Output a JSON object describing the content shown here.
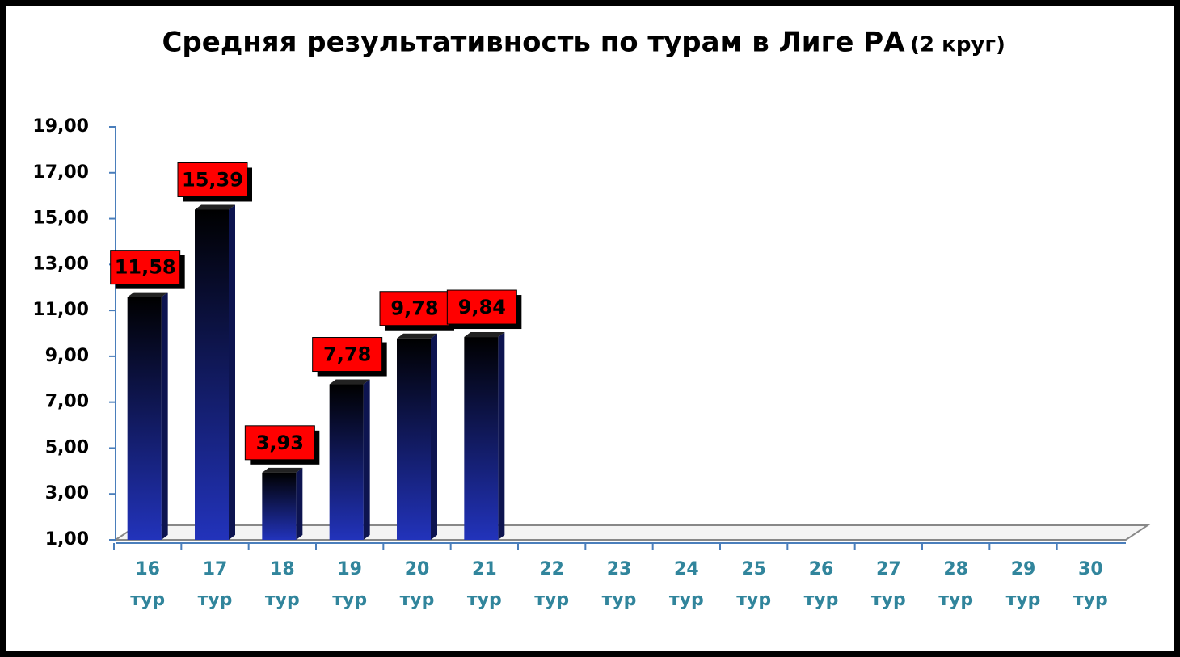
{
  "chart_data": {
    "type": "bar",
    "title": "Средняя результативность по турам в Лиге РА",
    "subtitle": "(2 круг)",
    "categories": [
      "16 тур",
      "17 тур",
      "18 тур",
      "19 тур",
      "20 тур",
      "21 тур",
      "22 тур",
      "23 тур",
      "24 тур",
      "25 тур",
      "26 тур",
      "27 тур",
      "28 тур",
      "29 тур",
      "30 тур"
    ],
    "values": [
      11.58,
      15.39,
      3.93,
      7.78,
      9.78,
      9.84,
      null,
      null,
      null,
      null,
      null,
      null,
      null,
      null,
      null
    ],
    "value_labels": [
      "11,58",
      "15,39",
      "3,93",
      "7,78",
      "9,78",
      "9,84",
      null,
      null,
      null,
      null,
      null,
      null,
      null,
      null,
      null
    ],
    "color": "#1a237e",
    "label_color": "#ff0000",
    "ylim": [
      1,
      19
    ],
    "yticks": [
      {
        "value": 1,
        "label": "1,00"
      },
      {
        "value": 3,
        "label": "3,00"
      },
      {
        "value": 5,
        "label": "5,00"
      },
      {
        "value": 7,
        "label": "7,00"
      },
      {
        "value": 9,
        "label": "9,00"
      },
      {
        "value": 11,
        "label": "11,00"
      },
      {
        "value": 13,
        "label": "13,00"
      },
      {
        "value": 15,
        "label": "15,00"
      },
      {
        "value": 17,
        "label": "17,00"
      },
      {
        "value": 19,
        "label": "19,00"
      }
    ],
    "grid": false
  }
}
